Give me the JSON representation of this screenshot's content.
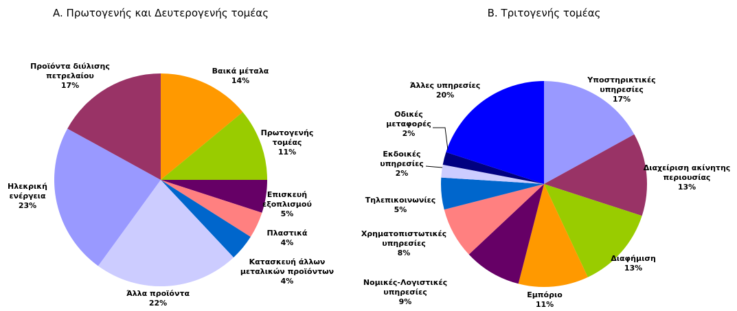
{
  "chart_data": [
    {
      "type": "pie",
      "title": "A. Πρωτογενής και Δευτερογενής τομέας",
      "categories": [
        "Βαικά μέταλα",
        "Πρωτογενής τομέας",
        "Επισκευή εξοπλισμού",
        "Πλαστικά",
        "Κατασκευή άλλων μεταλικών προϊόντων",
        "Άλλα προϊόντα",
        "Ηλεκρική ενέργεια",
        "Προϊόντα διύλισης πετρελαίου"
      ],
      "values": [
        14,
        11,
        5,
        4,
        4,
        22,
        23,
        17
      ],
      "value_labels": [
        "14%",
        "11%",
        "5%",
        "4%",
        "4%",
        "22%",
        "23%",
        "17%"
      ],
      "colors": [
        "#ff9900",
        "#99cc00",
        "#660066",
        "#ff8080",
        "#0066cc",
        "#ccccff",
        "#9999ff",
        "#993366"
      ]
    },
    {
      "type": "pie",
      "title": "B. Τριτογενής τομέας",
      "categories": [
        "Υποστηρικτικές υπηρεσίες",
        "Διαχείριση ακίνητης περιουσίας",
        "Διαφήμιση",
        "Εμπόριο",
        "Νομικές-Λογιστικές υπηρεσίες",
        "Χρηματοπιστωτικές υπηρεσίες",
        "Τηλεπικοινωνίες",
        "Εκδοικές υπηρεσίες",
        "Οδικές μεταφορές",
        "Άλλες υπηρεσίες"
      ],
      "values": [
        17,
        13,
        13,
        11,
        9,
        8,
        5,
        2,
        2,
        20
      ],
      "value_labels": [
        "17%",
        "13%",
        "13%",
        "11%",
        "9%",
        "8%",
        "5%",
        "2%",
        "2%",
        "20%"
      ],
      "colors": [
        "#9999ff",
        "#993366",
        "#99cc00",
        "#ff9900",
        "#660066",
        "#ff8080",
        "#0066cc",
        "#ccccff",
        "#000080",
        "#0000ff"
      ]
    }
  ]
}
